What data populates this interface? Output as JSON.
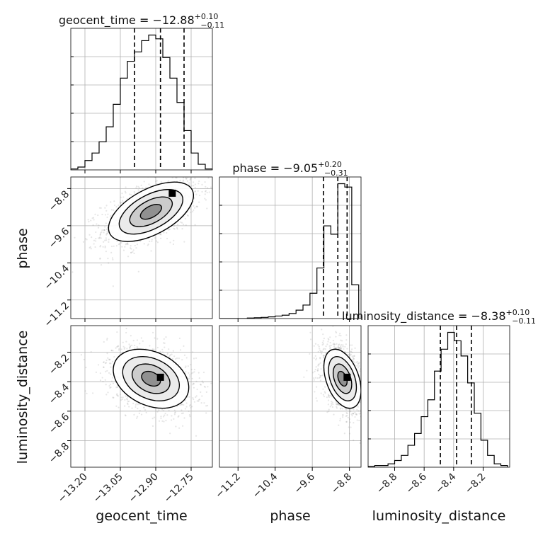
{
  "chart_data": {
    "type": "corner",
    "parameters": [
      "geocent_time",
      "phase",
      "luminosity_distance"
    ],
    "titles": [
      {
        "parameter": "geocent_time",
        "lead": "geocent_time = ",
        "median": "−12.88",
        "plus": "+0.10",
        "minus": "−0.11"
      },
      {
        "parameter": "phase",
        "lead": "phase = ",
        "median": "−9.05",
        "plus": "+0.20",
        "minus": "−0.31"
      },
      {
        "parameter": "luminosity_distance",
        "lead": "luminosity_distance = ",
        "median": "−8.38",
        "plus": "+0.10",
        "minus": "−0.11"
      }
    ],
    "axis_labels": {
      "x": [
        "geocent_time",
        "phase",
        "luminosity_distance"
      ],
      "y": [
        "phase",
        "luminosity_distance"
      ]
    },
    "ranges": {
      "geocent_time": [
        -13.26,
        -12.66
      ],
      "phase": [
        -11.6,
        -8.55
      ],
      "luminosity_distance": [
        -8.98,
        -8.02
      ]
    },
    "ticks": {
      "geocent_time": {
        "values": [
          -13.2,
          -13.05,
          -12.9,
          -12.75
        ],
        "labels": [
          "−13.20",
          "−13.05",
          "−12.90",
          "−12.75"
        ]
      },
      "phase": {
        "values": [
          -11.2,
          -10.4,
          -9.6,
          -8.8
        ],
        "labels": [
          "−11.2",
          "−10.4",
          "−9.6",
          "−8.8"
        ]
      },
      "luminosity_distance": {
        "values": [
          -8.8,
          -8.6,
          -8.4,
          -8.2
        ],
        "labels": [
          "−8.8",
          "−8.6",
          "−8.4",
          "−8.2"
        ]
      }
    },
    "quantiles": {
      "geocent_time": [
        -12.99,
        -12.88,
        -12.78
      ],
      "phase": [
        -9.36,
        -9.05,
        -8.85
      ],
      "luminosity_distance": [
        -8.49,
        -8.38,
        -8.28
      ]
    },
    "histograms": {
      "geocent_time": {
        "bin_edges": [
          -13.26,
          -13.23,
          -13.2,
          -13.17,
          -13.14,
          -13.11,
          -13.08,
          -13.05,
          -13.02,
          -12.99,
          -12.96,
          -12.93,
          -12.9,
          -12.87,
          -12.84,
          -12.81,
          -12.78,
          -12.75,
          -12.72,
          -12.69,
          -12.66
        ],
        "counts": [
          0.5,
          1.5,
          5,
          9,
          15,
          23,
          35,
          49,
          58,
          63,
          69,
          72,
          70,
          60,
          49,
          36,
          21,
          9,
          3,
          0.5
        ]
      },
      "phase": {
        "bin_edges": [
          -11.6,
          -11.45,
          -11.3,
          -11.15,
          -11.0,
          -10.85,
          -10.7,
          -10.55,
          -10.4,
          -10.25,
          -10.1,
          -9.95,
          -9.8,
          -9.65,
          -9.5,
          -9.35,
          -9.2,
          -9.05,
          -8.9,
          -8.75,
          -8.6
        ],
        "counts": [
          0,
          0,
          0,
          0,
          0.3,
          0.5,
          0.7,
          1,
          1.5,
          2,
          3,
          5,
          8,
          15,
          30,
          55,
          50,
          80,
          78,
          20
        ]
      },
      "luminosity_distance": {
        "bin_edges": [
          -8.98,
          -8.935,
          -8.89,
          -8.845,
          -8.8,
          -8.755,
          -8.71,
          -8.665,
          -8.62,
          -8.575,
          -8.53,
          -8.485,
          -8.44,
          -8.395,
          -8.35,
          -8.305,
          -8.26,
          -8.215,
          -8.17,
          -8.125,
          -8.08,
          -8.035
        ],
        "counts": [
          0.5,
          1,
          1,
          2,
          4,
          7,
          13,
          20,
          30,
          40,
          57,
          70,
          80,
          75,
          66,
          50,
          32,
          16,
          7,
          2,
          1
        ]
      }
    },
    "joint_posteriors": [
      {
        "x": "geocent_time",
        "y": "phase",
        "mean": [
          -12.92,
          -9.3
        ],
        "std": [
          0.09,
          0.32
        ],
        "corr": 0.55,
        "peak": [
          -12.83,
          -8.9
        ]
      },
      {
        "x": "geocent_time",
        "y": "luminosity_distance",
        "mean": [
          -12.92,
          -8.38
        ],
        "std": [
          0.08,
          0.1
        ],
        "corr": -0.3,
        "peak": [
          -12.88,
          -8.37
        ]
      },
      {
        "x": "phase",
        "y": "luminosity_distance",
        "mean": [
          -8.95,
          -8.38
        ],
        "std": [
          0.2,
          0.1
        ],
        "corr": -0.4,
        "peak": [
          -8.85,
          -8.37
        ]
      }
    ],
    "grid": true,
    "colors": {
      "line": "#000000",
      "grid": "#b0b0b0",
      "scatter": "#8c8c8c"
    }
  }
}
